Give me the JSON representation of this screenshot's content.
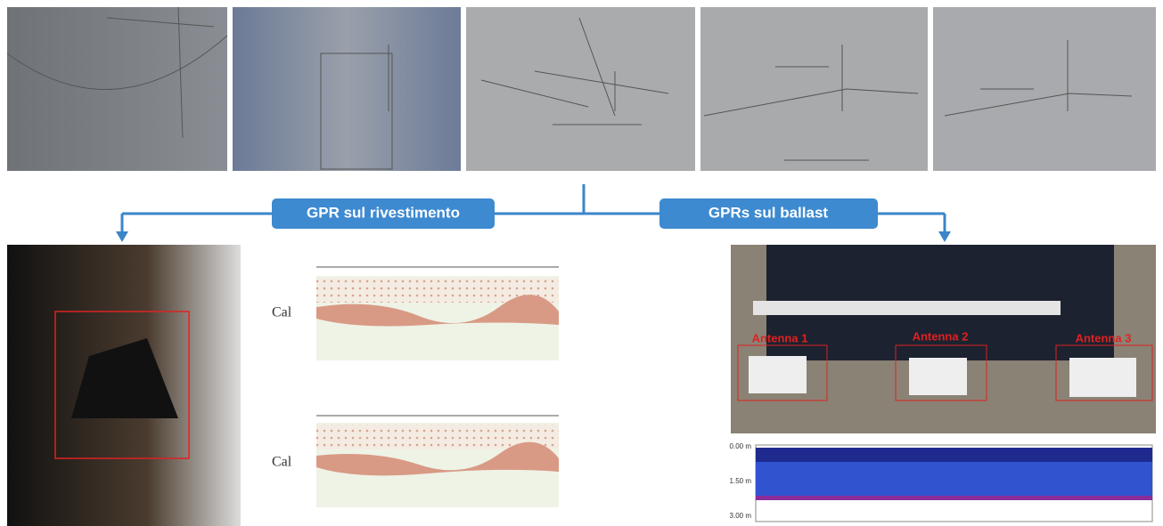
{
  "labels": {
    "left": "GPR sul rivestimento",
    "right": "GPRs sul ballast"
  },
  "radargrams": [
    {
      "label": "Cal"
    },
    {
      "label": "Cal"
    }
  ],
  "antennas": [
    "Antenna 1",
    "Antenna 2",
    "Antenna 3"
  ],
  "depth_axis": [
    "0.00 m",
    "1.50 m",
    "3.00 m"
  ]
}
